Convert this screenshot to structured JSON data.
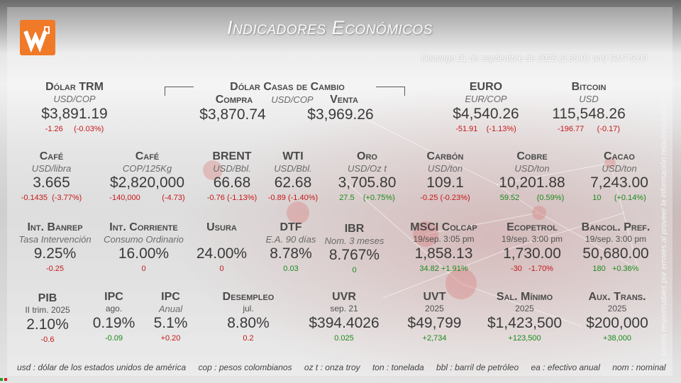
{
  "header": {
    "title": "Indicadores Económicos",
    "date": "Domingo 21 de septiembre de 2025 (5:30:01 am) GMT-5:00",
    "logo_icon": "w-logo-icon",
    "accent": "#f07a28"
  },
  "disclaimer": "No somos responsables por errores al proveer la información relacionados a ésta.",
  "row1": {
    "trm": {
      "label": "Dólar TRM",
      "unit": "USD/COP",
      "value": "$3,891.19",
      "chg": "-1.26",
      "pct": "(-0.03%)"
    },
    "casas": {
      "label": "Dólar Casas de Cambio",
      "unit": "USD/COP",
      "compra_label": "Compra",
      "venta_label": "Venta",
      "compra": "$3,870.74",
      "venta": "$3,969.26"
    },
    "euro": {
      "label": "EURO",
      "unit": "EUR/COP",
      "value": "$4,540.26",
      "chg": "-51.91",
      "pct": "(-1.13%)"
    },
    "bitcoin": {
      "label": "Bitcoin",
      "unit": "USD",
      "value": "115,548.26",
      "chg": "-196.77",
      "pct": "(-0.17)"
    }
  },
  "row2": [
    {
      "key": "cafe-usd",
      "label": "Café",
      "unit": "USD/libra",
      "value": "3.665",
      "chg": "-0.1435",
      "pct": "(-3.77%)",
      "dir": "red"
    },
    {
      "key": "cafe-cop",
      "label": "Café",
      "unit": "COP/125Kg",
      "value": "$2,820,000",
      "chg": "-140,000",
      "pct": "(-4.73)",
      "dir": "red"
    },
    {
      "key": "brent",
      "label": "BRENT",
      "unit": "USD/Bbl.",
      "value": "66.68",
      "chg": "-0.76",
      "pct": "(-1.13%)",
      "dir": "red"
    },
    {
      "key": "wti",
      "label": "WTI",
      "unit": "USD/Bbl.",
      "value": "62.68",
      "chg": "-0.89",
      "pct": "(-1.40%)",
      "dir": "red"
    },
    {
      "key": "oro",
      "label": "Oro",
      "unit": "USD/Oz t",
      "value": "3,705.80",
      "chg": "27.5",
      "pct": "(+0.75%)",
      "dir": "green"
    },
    {
      "key": "carbon",
      "label": "Carbón",
      "unit": "USD/ton",
      "value": "109.1",
      "chg": "-0.25",
      "pct": "(-0.23%)",
      "dir": "red"
    },
    {
      "key": "cobre",
      "label": "Cobre",
      "unit": "USD/ton",
      "value": "10,201.88",
      "chg": "59.52",
      "pct": "(0.59%)",
      "dir": "green"
    },
    {
      "key": "cacao",
      "label": "Cacao",
      "unit": "USD/ton",
      "value": "7,243.00",
      "chg": "10",
      "pct": "(+0.14%)",
      "dir": "green"
    }
  ],
  "row3": [
    {
      "key": "banrep",
      "label": "Int. Banrep",
      "unit": "Tasa Intervención",
      "value": "9.25%",
      "chg": "-0.25",
      "dir": "red"
    },
    {
      "key": "corriente",
      "label": "Int. Corriente",
      "unit": "Consumo Ordinario",
      "value": "16.00%",
      "chg": "0",
      "dir": "red"
    },
    {
      "key": "usura",
      "label": "Usura",
      "unit": "",
      "value": "24.00%",
      "chg": "0",
      "dir": "red"
    },
    {
      "key": "dtf",
      "label": "DTF",
      "unit": "E.A. 90 días",
      "value": "8.78%",
      "chg": "0.03",
      "dir": "green"
    },
    {
      "key": "ibr",
      "label": "IBR",
      "unit": "Nom. 3 meses",
      "value": "8.767%",
      "chg": "0",
      "dir": "green"
    },
    {
      "key": "msci",
      "label": "MSCI Colcap",
      "unit": "19/sep. 3:05 pm",
      "value": "1,858.13",
      "chg": "34.82",
      "pct": "+1.91%",
      "dir": "green"
    },
    {
      "key": "ecopetrol",
      "label": "Ecopetrol",
      "unit": "19/sep. 3:00 pm",
      "value": "1,730.00",
      "chg": "-30",
      "pct": "-1.70%",
      "dir": "red"
    },
    {
      "key": "bancol",
      "label": "Bancol. Pref.",
      "unit": "19/sep. 3:00 pm",
      "value": "50,680.00",
      "chg": "180",
      "pct": "+0.36%",
      "dir": "green"
    }
  ],
  "row4": [
    {
      "key": "pib",
      "label": "PIB",
      "unit": "II trim. 2025",
      "value": "2.10%",
      "chg": "-0.6",
      "dir": "red"
    },
    {
      "key": "ipc-ago",
      "label": "IPC",
      "unit": "ago.",
      "value": "0.19%",
      "chg": "-0.09",
      "dir": "green"
    },
    {
      "key": "ipc-anual",
      "label": "IPC",
      "unit": "Anual",
      "value": "5.1%",
      "chg": "+0.20",
      "dir": "red"
    },
    {
      "key": "desempleo",
      "label": "Desempleo",
      "unit": "jul.",
      "value": "8.80%",
      "chg": "0.2",
      "dir": "red"
    },
    {
      "key": "uvr",
      "label": "UVR",
      "unit": "sep. 21",
      "value": "$394.4026",
      "chg": "0.025",
      "dir": "green"
    },
    {
      "key": "uvt",
      "label": "UVT",
      "unit": "2025",
      "value": "$49,799",
      "chg": "+2,734",
      "dir": "green"
    },
    {
      "key": "salmin",
      "label": "Sal. Mínimo",
      "unit": "2025",
      "value": "$1,423,500",
      "chg": "+123,500",
      "dir": "green"
    },
    {
      "key": "auxtrans",
      "label": "Aux. Trans.",
      "unit": "2025",
      "value": "$200,000",
      "chg": "+38,000",
      "dir": "green"
    }
  ],
  "footer": [
    "usd : dólar de los estados unidos de américa",
    "cop : pesos colombianos",
    "oz t : onza troy",
    "ton : tonelada",
    "bbl : barril de petróleo",
    "ea : efectivo anual",
    "nom : nominal"
  ]
}
